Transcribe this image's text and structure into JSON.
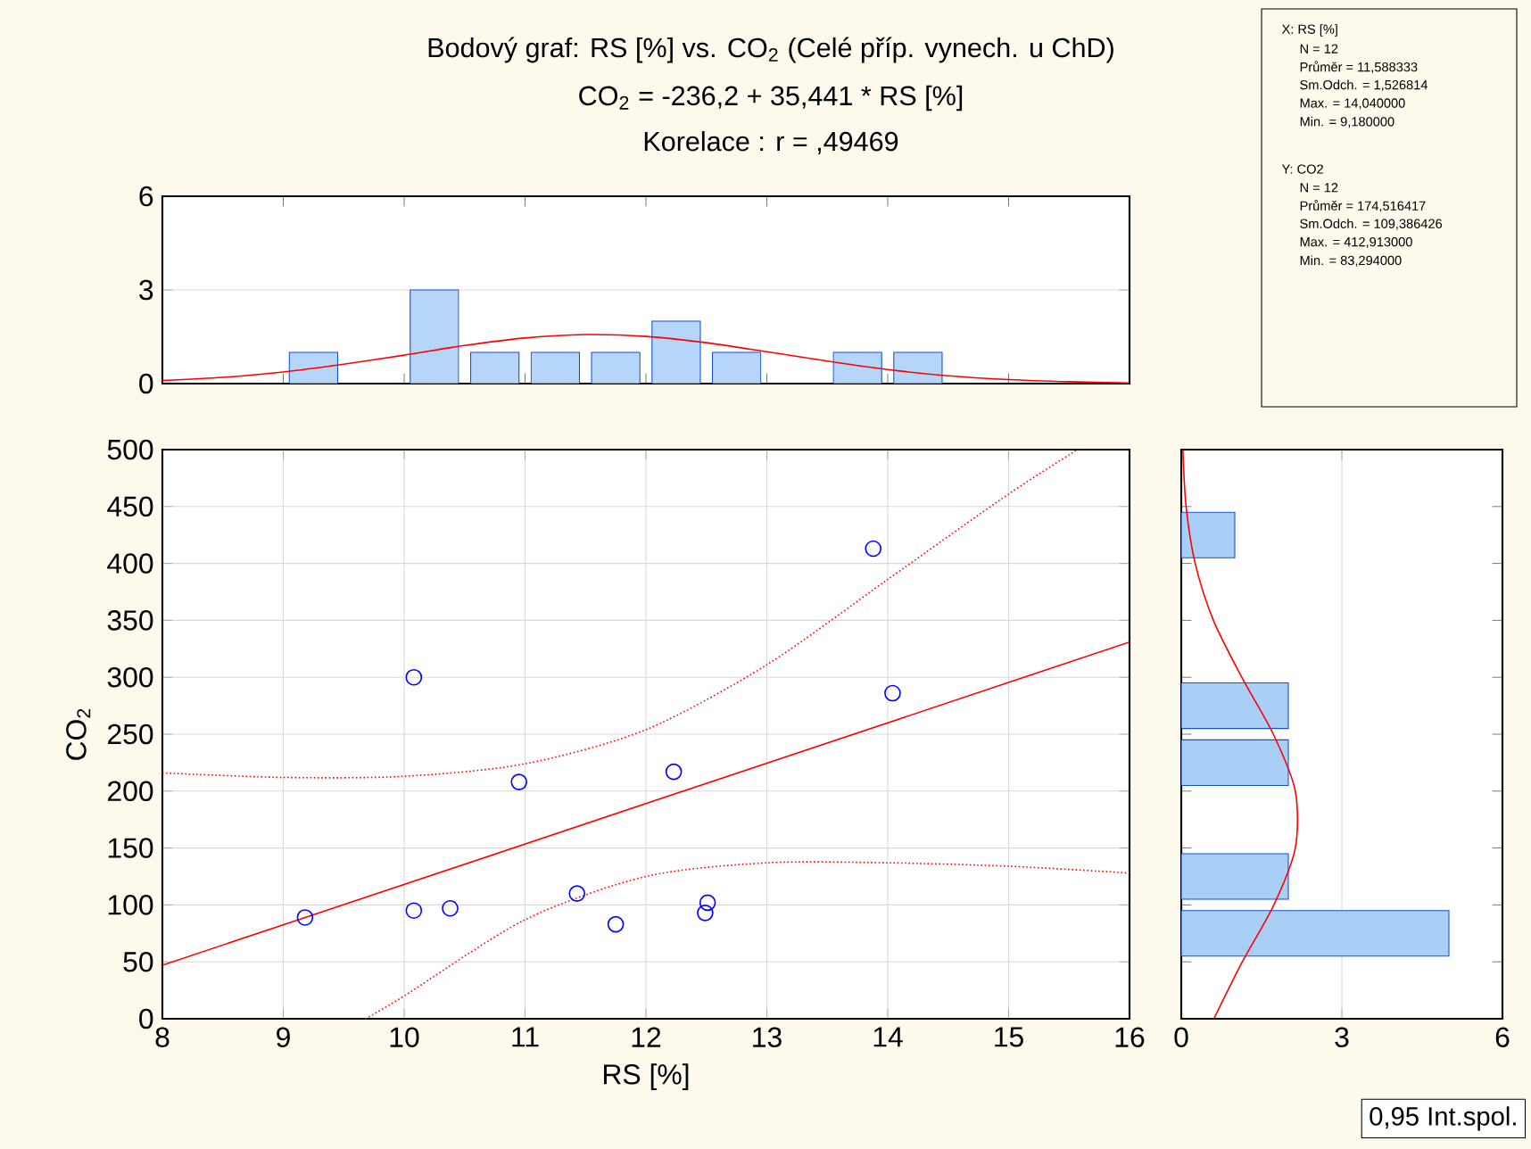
{
  "chart_data": [
    {
      "type": "histogram",
      "title": "Bodový graf: RS [%] vs. CO$_{2}$ (Celé příp. vynech. u ChD)",
      "subtitle": "CO$_{2}$ = -236,2 + 35,441 * RS [%]",
      "annotations": [
        "Korelace :   r = ,49469"
      ],
      "bins": [
        8,
        8.5,
        9,
        9.5,
        10,
        10.5,
        11,
        11.5,
        12,
        12.5,
        13,
        13.5,
        14,
        14.5,
        15,
        15.5,
        16
      ],
      "xlim": [
        8,
        16
      ],
      "xticks": [
        8,
        9,
        10,
        11,
        12,
        13,
        14,
        15,
        16
      ],
      "ylim": [
        0,
        6
      ],
      "yticks": [
        0,
        3,
        6
      ],
      "grid": "y",
      "tick_labels": "y",
      "series": [
        {
          "type": "histogram",
          "color": "#b5d6f8",
          "values": [
            0,
            0,
            1,
            0,
            3,
            1,
            1,
            1,
            2,
            1,
            0,
            1,
            1,
            0,
            0,
            0
          ]
        },
        {
          "type": "line",
          "color": "#ff0000",
          "x": [
            8,
            8.5,
            9,
            9.5,
            10,
            10.5,
            11,
            11.5,
            12,
            12.5,
            13,
            13.5,
            14,
            14.5,
            15,
            15.5,
            16
          ],
          "values": [
            0.1,
            0.2,
            0.37,
            0.62,
            0.91,
            1.22,
            1.46,
            1.57,
            1.51,
            1.31,
            1.02,
            0.72,
            0.45,
            0.25,
            0.13,
            0.06,
            0.02
          ]
        }
      ]
    },
    {
      "type": "other",
      "annotations": [
        "X:  RS [%]",
        "N = 12",
        "Průměr = 11,588333",
        "Sm.Odch. = 1,526814",
        "Max. = 14,040000",
        "Min. = 9,180000",
        "Y:  CO2",
        "N = 12",
        "Průměr = 174,516417",
        "Sm.Odch. = 109,386426",
        "Max. = 412,913000",
        "Min. = 83,294000"
      ]
    },
    {
      "type": "scatter",
      "xlabel": "RS [%]",
      "ylabel": "CO$_{2}$",
      "annotations": [
        "0,95 Int.spol."
      ],
      "xlim": [
        8,
        16
      ],
      "xticks": [
        8,
        9,
        10,
        11,
        12,
        13,
        14,
        15,
        16
      ],
      "ylim": [
        0,
        500
      ],
      "yticks": [
        0,
        50,
        100,
        150,
        200,
        250,
        300,
        350,
        400,
        450,
        500
      ],
      "grid": true,
      "series": [
        {
          "type": "line",
          "color": "#ff0000",
          "line_style": "solid",
          "marker": "none",
          "x": [
            8,
            16
          ],
          "values": [
            47,
            331
          ]
        },
        {
          "type": "line",
          "color": "#ff0000",
          "line_style": "dotted",
          "marker": "none",
          "x": [
            8,
            9,
            10,
            11,
            12,
            13,
            14,
            15,
            15.57
          ],
          "values": [
            216,
            212,
            213,
            224,
            254,
            311,
            386,
            461,
            500
          ]
        },
        {
          "type": "line",
          "color": "#ff0000",
          "line_style": "dotted",
          "marker": "none",
          "x": [
            9.68,
            10,
            11,
            12,
            13,
            14,
            15,
            16
          ],
          "values": [
            0,
            20,
            87,
            125,
            137,
            137,
            134,
            128
          ]
        },
        {
          "type": "scatter",
          "color": "#0000ff",
          "marker": "circle",
          "x": [
            9.18,
            10.08,
            10.08,
            10.38,
            10.95,
            11.43,
            11.75,
            12.23,
            12.51,
            12.49,
            13.88,
            14.04
          ],
          "values": [
            89,
            300,
            95,
            97,
            208,
            110,
            83,
            217,
            102,
            93,
            413,
            286
          ]
        }
      ]
    },
    {
      "type": "histogram",
      "orientation": "horizontal",
      "bins": [
        0,
        50,
        100,
        150,
        200,
        250,
        300,
        350,
        400,
        450,
        500
      ],
      "xlim": [
        0,
        6
      ],
      "xticks": [
        0,
        3,
        6
      ],
      "ylim": [
        0,
        500
      ],
      "yticks": [
        0,
        50,
        100,
        150,
        200,
        250,
        300,
        350,
        400,
        450,
        500
      ],
      "grid": "x",
      "tick_labels": "x",
      "series": [
        {
          "type": "histogram",
          "color": "#a9cff6",
          "values": [
            0,
            5,
            2,
            0,
            2,
            2,
            0,
            0,
            1,
            0
          ]
        },
        {
          "type": "line",
          "color": "#ff0000",
          "x": [
            0,
            50,
            100,
            150,
            200,
            250,
            300,
            350,
            400,
            450,
            500
          ],
          "values": [
            0.61,
            1.14,
            1.73,
            2.13,
            2.13,
            1.72,
            1.13,
            0.6,
            0.26,
            0.09,
            0.03
          ]
        }
      ]
    }
  ]
}
